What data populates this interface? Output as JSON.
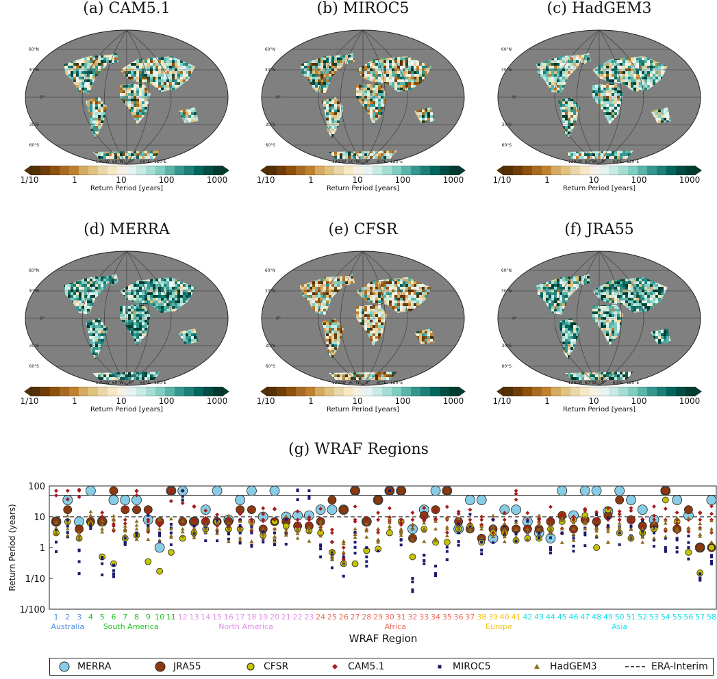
{
  "panels": [
    {
      "id": "a",
      "title": "(a) CAM5.1",
      "pattern": "cam"
    },
    {
      "id": "b",
      "title": "(b) MIROC5",
      "pattern": "miroc"
    },
    {
      "id": "c",
      "title": "(c) HadGEM3",
      "pattern": "hadgem"
    },
    {
      "id": "d",
      "title": "(d) MERRA",
      "pattern": "merra"
    },
    {
      "id": "e",
      "title": "(e) CFSR",
      "pattern": "cfsr"
    },
    {
      "id": "f",
      "title": "(f) JRA55",
      "pattern": "jra"
    }
  ],
  "map_labels": {
    "lat": [
      "60°N",
      "30°N",
      "0°",
      "30°S",
      "60°S"
    ],
    "lon": [
      "120°W",
      "60°W",
      "0°",
      "60°E",
      "120°E"
    ]
  },
  "colorbar": {
    "ticks": [
      "1/10",
      "1",
      "10",
      "100",
      "1000"
    ],
    "label": "Return Period [years]",
    "colors": [
      "#543005",
      "#6f3d08",
      "#8c510a",
      "#a86a22",
      "#bf812d",
      "#d4aa62",
      "#dfc27d",
      "#ead6ab",
      "#f6e8c3",
      "#f5f1e6",
      "#e6f3f1",
      "#c7eae5",
      "#a6ddd3",
      "#80cdc1",
      "#5ab4a8",
      "#35978f",
      "#1e7f76",
      "#01665e",
      "#014d44",
      "#003c30"
    ]
  },
  "bottom_chart": {
    "title": "(g) WRAF Regions",
    "ylabel": "Return Period (years)",
    "xlabel": "WRAF Region",
    "yticks": [
      "100",
      "10",
      "1",
      "1/10",
      "1/100"
    ],
    "solid_line_value": 50,
    "era_interim_value": 10,
    "regions": [
      "1",
      "2",
      "3",
      "4",
      "5",
      "6",
      "7",
      "8",
      "9",
      "10",
      "11",
      "12",
      "13",
      "14",
      "15",
      "16",
      "17",
      "18",
      "19",
      "20",
      "21",
      "22",
      "23",
      "24",
      "25",
      "26",
      "27",
      "28",
      "29",
      "30",
      "31",
      "32",
      "33",
      "34",
      "35",
      "36",
      "37",
      "38",
      "39",
      "40",
      "41",
      "42",
      "43",
      "44",
      "45",
      "46",
      "47",
      "48",
      "49",
      "50",
      "51",
      "52",
      "53",
      "54",
      "55",
      "56",
      "57",
      "58"
    ],
    "continents": [
      {
        "name": "Australia",
        "from": 1,
        "to": 3,
        "color": "#4f8fe0"
      },
      {
        "name": "South America",
        "from": 4,
        "to": 11,
        "color": "#1ec31e"
      },
      {
        "name": "North America",
        "from": 12,
        "to": 23,
        "color": "#e08ee6"
      },
      {
        "name": "Africa",
        "from": 24,
        "to": 37,
        "color": "#f06a5a"
      },
      {
        "name": "Europe",
        "from": 38,
        "to": 41,
        "color": "#f2c418"
      },
      {
        "name": "Asia",
        "from": 42,
        "to": 58,
        "color": "#18e0e8"
      }
    ]
  },
  "legend": {
    "items": [
      {
        "key": "merra",
        "label": "MERRA",
        "color": "#87cde6"
      },
      {
        "key": "jra55",
        "label": "JRA55",
        "color": "#8b3a10"
      },
      {
        "key": "cfsr",
        "label": "CFSR",
        "color": "#c4c400"
      },
      {
        "key": "cam",
        "label": "CAM5.1",
        "color": "#a51d1d"
      },
      {
        "key": "miroc",
        "label": "MIROC5",
        "color": "#1a1a6e"
      },
      {
        "key": "hadgem",
        "label": "HadGEM3",
        "color": "#8a6a1e"
      },
      {
        "key": "era",
        "label": "ERA-Interim",
        "color": "#111111"
      }
    ]
  },
  "chart_data": {
    "type": "scatter",
    "title": "(g) WRAF Regions",
    "xlabel": "WRAF Region",
    "ylabel": "Return Period (years)",
    "yscale": "log",
    "ylim": [
      0.01,
      100
    ],
    "categories": [
      "1",
      "2",
      "3",
      "4",
      "5",
      "6",
      "7",
      "8",
      "9",
      "10",
      "11",
      "12",
      "13",
      "14",
      "15",
      "16",
      "17",
      "18",
      "19",
      "20",
      "21",
      "22",
      "23",
      "24",
      "25",
      "26",
      "27",
      "28",
      "29",
      "30",
      "31",
      "32",
      "33",
      "34",
      "35",
      "36",
      "37",
      "38",
      "39",
      "40",
      "41",
      "42",
      "43",
      "44",
      "45",
      "46",
      "47",
      "48",
      "49",
      "50",
      "51",
      "52",
      "53",
      "54",
      "55",
      "56",
      "57",
      "58"
    ],
    "series": [
      {
        "name": "MERRA",
        "values": [
          7,
          35,
          7,
          70,
          7,
          35,
          35,
          35,
          8,
          1,
          70,
          70,
          7,
          17,
          70,
          8,
          35,
          70,
          10,
          70,
          10,
          11,
          11,
          17,
          17,
          17,
          70,
          7,
          35,
          70,
          70,
          4,
          17,
          70,
          70,
          4,
          35,
          35,
          2,
          17,
          17,
          7,
          3,
          2,
          70,
          11,
          70,
          70,
          15,
          70,
          35,
          17,
          8,
          70,
          35,
          11,
          1,
          35
        ]
      },
      {
        "name": "JRA55",
        "values": [
          7,
          17,
          4,
          7,
          7,
          70,
          17,
          17,
          17,
          7,
          70,
          7,
          7,
          7,
          7,
          7,
          17,
          17,
          4,
          7,
          7,
          5,
          5,
          7,
          35,
          17,
          70,
          7,
          35,
          70,
          70,
          2,
          11,
          17,
          70,
          7,
          4,
          2,
          4,
          4,
          4,
          4,
          4,
          7,
          11,
          4,
          8,
          7,
          11,
          35,
          8,
          5,
          5,
          70,
          4,
          17,
          1,
          1
        ]
      },
      {
        "name": "CFSR",
        "values": [
          3,
          7,
          2,
          6,
          0.5,
          0.3,
          2,
          2.5,
          0.35,
          0.17,
          0.7,
          2,
          3,
          4,
          7,
          4,
          4,
          7,
          2.5,
          7,
          5,
          4,
          3.5,
          3,
          0.7,
          0.3,
          0.3,
          0.8,
          0.9,
          3,
          7,
          0.5,
          4,
          1.5,
          1.5,
          4,
          5,
          1.5,
          3,
          3,
          1.7,
          2,
          2,
          4,
          7,
          8,
          11,
          1,
          17,
          3,
          2,
          3,
          4,
          35,
          7,
          0.7,
          0.15,
          1
        ]
      },
      {
        "name": "CAM5.1",
        "values": [
          70,
          70,
          70,
          8,
          8,
          8,
          8,
          70,
          8,
          8,
          70,
          70,
          8,
          8,
          8,
          8,
          8,
          8,
          8,
          8,
          8,
          8,
          8,
          8,
          1.5,
          1,
          8,
          8,
          8,
          8,
          8,
          8,
          8,
          8,
          8,
          8,
          8,
          8,
          8,
          8,
          70,
          8,
          8,
          8,
          8,
          8,
          8,
          8,
          8,
          8,
          8,
          8,
          8,
          8,
          8,
          8,
          8,
          8
        ]
      },
      {
        "name": "MIROC5",
        "values": [
          1.5,
          5,
          0.35,
          5,
          0.3,
          0.14,
          1.5,
          3,
          5,
          3,
          3,
          70,
          3,
          3,
          3,
          3,
          3,
          3,
          3,
          3,
          3,
          70,
          70,
          0.5,
          0.4,
          0.3,
          1.5,
          0.5,
          1.5,
          70,
          3,
          0.1,
          0.3,
          0.25,
          0.4,
          3,
          5,
          1.5,
          4,
          5,
          3,
          3,
          2,
          1,
          3,
          2,
          3,
          5,
          5,
          3,
          5,
          3,
          3,
          1,
          2,
          1,
          0.1,
          0.5
        ]
      },
      {
        "name": "HadGEM3",
        "values": [
          3,
          4,
          2,
          7,
          4,
          4,
          4,
          4,
          4,
          4,
          4,
          4,
          4,
          4,
          4,
          4,
          4,
          4,
          4,
          4,
          4,
          4,
          4,
          4,
          0.8,
          0.7,
          4,
          4,
          4,
          4,
          4,
          4,
          4,
          4,
          4,
          4,
          4,
          4,
          4,
          4,
          4,
          4,
          4,
          4,
          4,
          4,
          4,
          4,
          4,
          4,
          4,
          4,
          4,
          4,
          4,
          4,
          4,
          4
        ]
      }
    ],
    "reference_lines": [
      {
        "name": "ERA-Interim",
        "value": 10,
        "style": "dashed"
      },
      {
        "value": 50,
        "style": "solid"
      }
    ]
  }
}
